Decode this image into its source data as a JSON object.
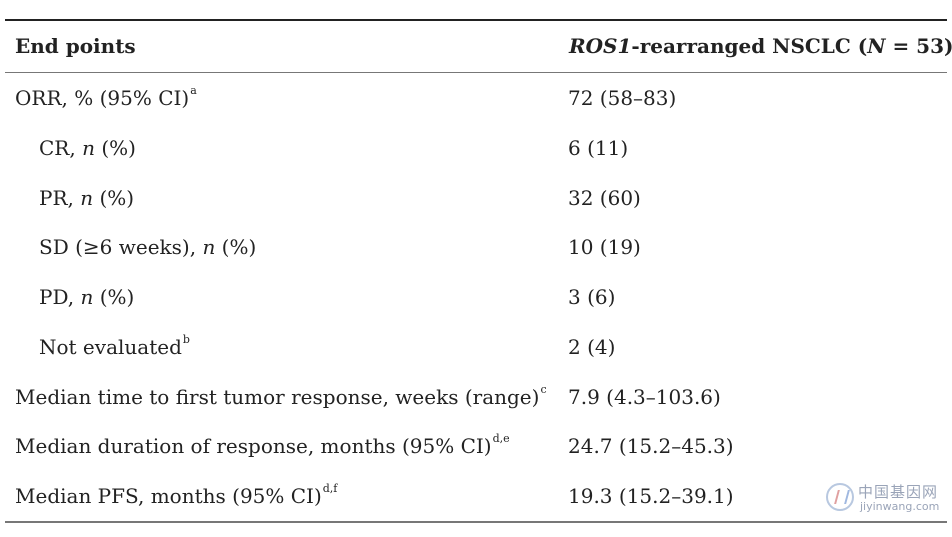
{
  "header": {
    "col1": "End points",
    "col2_gene": "ROS1",
    "col2_rest": "-rearranged NSCLC (",
    "col2_n": "N",
    "col2_tail": " = 53)"
  },
  "rows": [
    {
      "label": "ORR, % (95% CI)",
      "italic": "",
      "after": "",
      "sup": "a",
      "value": "72 (58–83)"
    },
    {
      "label": "CR, ",
      "italic": "n",
      "after": " (%)",
      "sup": "",
      "value": "6 (11)"
    },
    {
      "label": "PR, ",
      "italic": "n",
      "after": " (%)",
      "sup": "",
      "value": "32 (60)"
    },
    {
      "label": "SD (≥6 weeks), ",
      "italic": "n",
      "after": " (%)",
      "sup": "",
      "value": "10 (19)"
    },
    {
      "label": "PD, ",
      "italic": "n",
      "after": " (%)",
      "sup": "",
      "value": "3 (6)"
    },
    {
      "label": "Not evaluated",
      "italic": "",
      "after": "",
      "sup": "b",
      "value": "2 (4)"
    },
    {
      "label": "Median time to first tumor response, weeks (range)",
      "italic": "",
      "after": "",
      "sup": "c",
      "value": "7.9 (4.3–103.6)"
    },
    {
      "label": "Median duration of response, months (95% CI)",
      "italic": "",
      "after": "",
      "sup": "d,e",
      "value": "24.7 (15.2–45.3)"
    },
    {
      "label": "Median PFS, months (95% CI)",
      "italic": "",
      "after": "",
      "sup": "d,f",
      "value": "19.3 (15.2–39.1)"
    }
  ],
  "watermark": {
    "chinese": "中国基因网",
    "url": "jiyinwang.com"
  }
}
